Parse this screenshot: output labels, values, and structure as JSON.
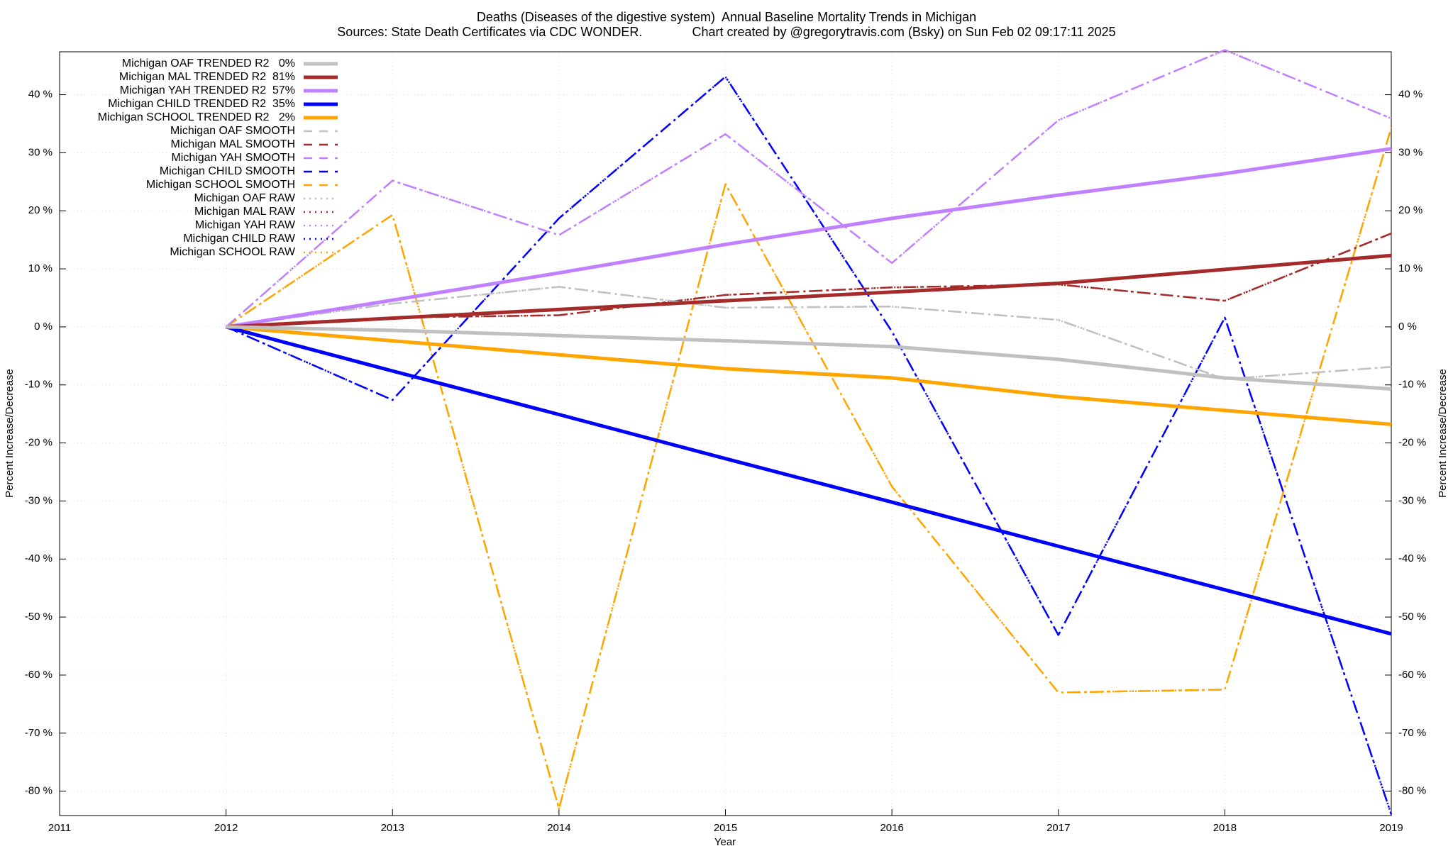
{
  "chart_data": {
    "type": "line",
    "title": "Deaths (Diseases of the digestive system)  Annual Baseline Mortality Trends in Michigan",
    "subtitle": "Sources: State Death Certificates via CDC WONDER.              Chart created by @gregorytravis.com (Bsky) on Sun Feb 02 09:17:11 2025",
    "x_label": "Year",
    "y_label": "Percent Increase/Decrease",
    "y2_label": "Percent Increase/Decrease",
    "x": [
      2012,
      2013,
      2014,
      2015,
      2016,
      2017,
      2018,
      2019
    ],
    "xlim": [
      2011,
      2019
    ],
    "xticks": [
      2011,
      2012,
      2013,
      2014,
      2015,
      2016,
      2017,
      2018,
      2019
    ],
    "ylim": [
      -84.2,
      47.4
    ],
    "yticks": [
      {
        "value": -80,
        "label": "-80 %"
      },
      {
        "value": -70,
        "label": "-70 %"
      },
      {
        "value": -60,
        "label": "-60 %"
      },
      {
        "value": -50,
        "label": "-50 %"
      },
      {
        "value": -40,
        "label": "-40 %"
      },
      {
        "value": -30,
        "label": "-30 %"
      },
      {
        "value": -20,
        "label": "-20 %"
      },
      {
        "value": -10,
        "label": "-10 %"
      },
      {
        "value": 0,
        "label": "0 %"
      },
      {
        "value": 10,
        "label": "10 %"
      },
      {
        "value": 20,
        "label": "20 %"
      },
      {
        "value": 30,
        "label": "30 %"
      },
      {
        "value": 40,
        "label": "40 %"
      }
    ],
    "y2lim": [
      -84.2,
      47.4
    ],
    "y2ticks": [
      {
        "value": -80,
        "label": "-80 %"
      },
      {
        "value": -70,
        "label": "-70 %"
      },
      {
        "value": -60,
        "label": "-60 %"
      },
      {
        "value": -50,
        "label": "-50 %"
      },
      {
        "value": -40,
        "label": "-40 %"
      },
      {
        "value": -30,
        "label": "-30 %"
      },
      {
        "value": -20,
        "label": "-20 %"
      },
      {
        "value": -10,
        "label": "-10 %"
      },
      {
        "value": 0,
        "label": "0 %"
      },
      {
        "value": 10,
        "label": "10 %"
      },
      {
        "value": 20,
        "label": "20 %"
      },
      {
        "value": 30,
        "label": "30 %"
      },
      {
        "value": 40,
        "label": "40 %"
      }
    ],
    "grid": true,
    "legend": "top-left",
    "series": [
      {
        "name": "Michigan OAF TRENDED R2   0%",
        "color": "#c0c0c0",
        "style": "solid",
        "values": [
          0,
          -0.6,
          -1.5,
          -2.4,
          -3.4,
          -5.6,
          -8.8,
          -10.7
        ]
      },
      {
        "name": "Michigan MAL TRENDED R2  81%",
        "color": "#a52a2a",
        "style": "solid",
        "values": [
          0,
          1.5,
          3,
          4.5,
          6,
          7.5,
          9.9,
          12.3
        ]
      },
      {
        "name": "Michigan YAH TRENDED R2  57%",
        "color": "#c080ff",
        "style": "solid",
        "values": [
          0,
          4.6,
          9.3,
          14.2,
          18.7,
          22.7,
          26.4,
          30.7
        ]
      },
      {
        "name": "Michigan CHILD TRENDED R2  35%",
        "color": "#0000ff",
        "style": "solid",
        "values": [
          0,
          -7.6,
          -15.1,
          -22.7,
          -30.2,
          -37.8,
          -45.3,
          -52.9
        ]
      },
      {
        "name": "Michigan SCHOOL TRENDED R2   2%",
        "color": "#ffa500",
        "style": "solid",
        "values": [
          0,
          -2.4,
          -4.8,
          -7.2,
          -8.8,
          -12,
          -14.4,
          -16.8
        ]
      },
      {
        "name": "Michigan OAF SMOOTH",
        "color": "#c0c0c0",
        "style": "dashed",
        "values": [
          0,
          4,
          6.9,
          3.3,
          3.5,
          1.2,
          -9,
          -6.9
        ]
      },
      {
        "name": "Michigan MAL SMOOTH",
        "color": "#a52a2a",
        "style": "dashed",
        "values": [
          0,
          1.6,
          2,
          5.5,
          6.8,
          7.3,
          4.5,
          16.1
        ]
      },
      {
        "name": "Michigan YAH SMOOTH",
        "color": "#c080ff",
        "style": "dashed",
        "values": [
          0,
          25.2,
          15.8,
          33.2,
          11,
          35.6,
          47.7,
          35.9
        ]
      },
      {
        "name": "Michigan CHILD SMOOTH",
        "color": "#0000ff",
        "style": "dashed",
        "values": [
          0,
          -12.6,
          18.7,
          43.1,
          -0.8,
          -53.1,
          1.6,
          -84
        ]
      },
      {
        "name": "Michigan SCHOOL SMOOTH",
        "color": "#ffa500",
        "style": "dashed",
        "values": [
          0,
          19.3,
          -83,
          24.6,
          -27.5,
          -63,
          -62.5,
          34.3
        ]
      },
      {
        "name": "Michigan OAF RAW",
        "color": "#c0c0c0",
        "style": "dotted",
        "values": [
          0,
          4,
          6.9,
          3.3,
          3.5,
          1.2,
          -9,
          -6.9
        ]
      },
      {
        "name": "Michigan MAL RAW",
        "color": "#a52a2a",
        "style": "dotted",
        "values": [
          0,
          1.6,
          2,
          5.5,
          6.8,
          7.3,
          4.5,
          16.1
        ]
      },
      {
        "name": "Michigan YAH RAW",
        "color": "#c080ff",
        "style": "dotted",
        "values": [
          0,
          25.2,
          15.8,
          33.2,
          11,
          35.6,
          47.7,
          35.9
        ]
      },
      {
        "name": "Michigan CHILD RAW",
        "color": "#0000ff",
        "style": "dotted",
        "values": [
          0,
          -12.6,
          18.7,
          43.1,
          -0.8,
          -53.1,
          1.6,
          -84
        ]
      },
      {
        "name": "Michigan SCHOOL RAW",
        "color": "#ffa500",
        "style": "dotted",
        "values": [
          0,
          19.3,
          -83,
          24.6,
          -27.5,
          -63,
          -62.5,
          34.3
        ]
      }
    ]
  }
}
